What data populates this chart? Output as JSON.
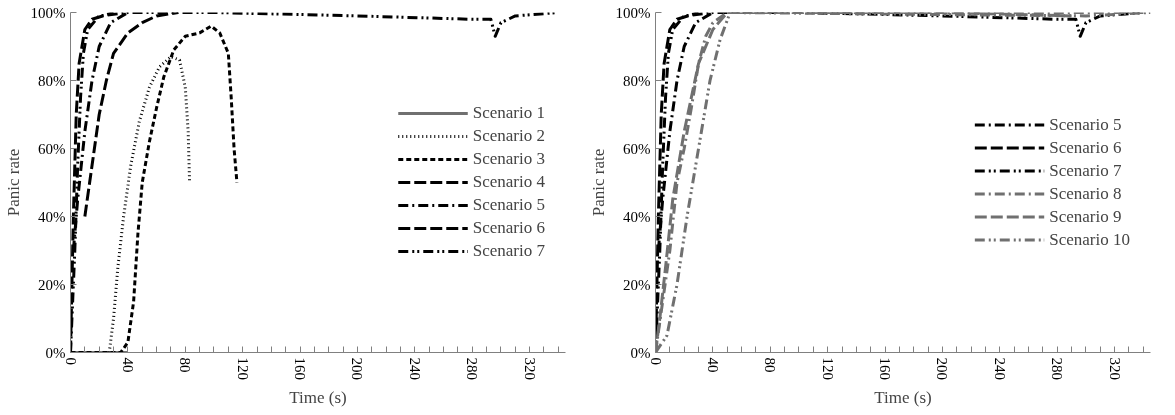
{
  "chart_data": [
    {
      "type": "line",
      "xlabel": "Time (s)",
      "ylabel": "Panic rate",
      "xlim": [
        0,
        345
      ],
      "ylim": [
        0,
        100
      ],
      "xticks": [
        0,
        {
          "value": 10,
          "label": null
        },
        {
          "value": 20,
          "label": null
        },
        {
          "value": 30,
          "label": null
        },
        40,
        {
          "value": 50,
          "label": null
        },
        {
          "value": 60,
          "label": null
        },
        {
          "value": 70,
          "label": null
        },
        80,
        {
          "value": 90,
          "label": null
        },
        {
          "value": 100,
          "label": null
        },
        {
          "value": 110,
          "label": null
        },
        120,
        {
          "value": 130,
          "label": null
        },
        {
          "value": 140,
          "label": null
        },
        {
          "value": 150,
          "label": null
        },
        160,
        {
          "value": 170,
          "label": null
        },
        {
          "value": 180,
          "label": null
        },
        {
          "value": 190,
          "label": null
        },
        200,
        {
          "value": 210,
          "label": null
        },
        {
          "value": 220,
          "label": null
        },
        {
          "value": 230,
          "label": null
        },
        240,
        {
          "value": 250,
          "label": null
        },
        {
          "value": 260,
          "label": null
        },
        {
          "value": 270,
          "label": null
        },
        280,
        {
          "value": 290,
          "label": null
        },
        {
          "value": 300,
          "label": null
        },
        {
          "value": 310,
          "label": null
        },
        320,
        {
          "value": 330,
          "label": null
        },
        {
          "value": 340,
          "label": null
        }
      ],
      "yticks": [
        {
          "value": 0,
          "label": "0%"
        },
        {
          "value": 20,
          "label": "20%"
        },
        {
          "value": 40,
          "label": "40%"
        },
        {
          "value": 60,
          "label": "60%"
        },
        {
          "value": 80,
          "label": "80%"
        },
        {
          "value": 100,
          "label": "100%"
        }
      ],
      "grid": false,
      "legend": "right",
      "marker": "none",
      "series": [
        {
          "name": "Scenario 1",
          "color": "#707070",
          "line_style": "solid",
          "x": [
            0,
            20,
            40
          ],
          "values": [
            0,
            0,
            0
          ]
        },
        {
          "name": "Scenario 2",
          "color": "#000000",
          "line_style": "dotted",
          "x": [
            27,
            30,
            33,
            37,
            42,
            48,
            55,
            62,
            70,
            76,
            80,
            82,
            83
          ],
          "values": [
            0,
            10,
            25,
            40,
            55,
            68,
            78,
            84,
            87,
            86,
            78,
            65,
            50
          ]
        },
        {
          "name": "Scenario 3",
          "color": "#000000",
          "line_style": "dashed",
          "x": [
            0,
            35,
            40,
            44,
            47,
            50,
            55,
            60,
            65,
            72,
            80,
            90,
            98,
            104,
            110,
            112,
            114,
            116
          ],
          "values": [
            0,
            0,
            3,
            15,
            35,
            50,
            62,
            72,
            81,
            89,
            93,
            94,
            96,
            94,
            88,
            75,
            60,
            50
          ]
        },
        {
          "name": "Scenario 4",
          "color": "#000000",
          "line_style": "longdash",
          "x": [
            10,
            15,
            20,
            25,
            30,
            40,
            50,
            60,
            75
          ],
          "values": [
            40,
            55,
            70,
            80,
            88,
            94,
            97,
            99,
            100
          ]
        },
        {
          "name": "Scenario 5",
          "color": "#000000",
          "line_style": "dashdot",
          "x": [
            2,
            5,
            10,
            15,
            20,
            28,
            40
          ],
          "values": [
            30,
            45,
            65,
            80,
            90,
            97,
            100
          ]
        },
        {
          "name": "Scenario 6",
          "color": "#000000",
          "line_style": "longdash",
          "x": [
            0,
            2,
            4,
            6,
            10,
            15,
            30
          ],
          "values": [
            0,
            40,
            70,
            85,
            95,
            98,
            100
          ]
        },
        {
          "name": "Scenario 7",
          "color": "#000000",
          "line_style": "dashdotdot",
          "x": [
            0,
            3,
            5,
            7,
            9,
            12,
            20,
            40,
            100,
            200,
            280,
            293,
            296,
            300,
            310,
            340
          ],
          "values": [
            0,
            30,
            55,
            75,
            88,
            95,
            99,
            100,
            100,
            99,
            98,
            98,
            93,
            97,
            99,
            100
          ]
        }
      ]
    },
    {
      "type": "line",
      "xlabel": "Time (s)",
      "ylabel": "Panic rate",
      "xlim": [
        0,
        345
      ],
      "ylim": [
        0,
        100
      ],
      "xticks": [
        0,
        {
          "value": 10,
          "label": null
        },
        {
          "value": 20,
          "label": null
        },
        {
          "value": 30,
          "label": null
        },
        40,
        {
          "value": 50,
          "label": null
        },
        {
          "value": 60,
          "label": null
        },
        {
          "value": 70,
          "label": null
        },
        80,
        {
          "value": 90,
          "label": null
        },
        {
          "value": 100,
          "label": null
        },
        {
          "value": 110,
          "label": null
        },
        120,
        {
          "value": 130,
          "label": null
        },
        {
          "value": 140,
          "label": null
        },
        {
          "value": 150,
          "label": null
        },
        160,
        {
          "value": 170,
          "label": null
        },
        {
          "value": 180,
          "label": null
        },
        {
          "value": 190,
          "label": null
        },
        200,
        {
          "value": 210,
          "label": null
        },
        {
          "value": 220,
          "label": null
        },
        {
          "value": 230,
          "label": null
        },
        240,
        {
          "value": 250,
          "label": null
        },
        {
          "value": 260,
          "label": null
        },
        {
          "value": 270,
          "label": null
        },
        280,
        {
          "value": 290,
          "label": null
        },
        {
          "value": 300,
          "label": null
        },
        {
          "value": 310,
          "label": null
        },
        320,
        {
          "value": 330,
          "label": null
        },
        {
          "value": 340,
          "label": null
        }
      ],
      "yticks": [
        {
          "value": 0,
          "label": "0%"
        },
        {
          "value": 20,
          "label": "20%"
        },
        {
          "value": 40,
          "label": "40%"
        },
        {
          "value": 60,
          "label": "60%"
        },
        {
          "value": 80,
          "label": "80%"
        },
        {
          "value": 100,
          "label": "100%"
        }
      ],
      "grid": false,
      "legend": "right",
      "marker": "none",
      "series": [
        {
          "name": "Scenario 5",
          "color": "#000000",
          "line_style": "dashdot",
          "x": [
            2,
            5,
            10,
            15,
            20,
            28,
            40
          ],
          "values": [
            30,
            45,
            65,
            80,
            90,
            97,
            100
          ]
        },
        {
          "name": "Scenario 6",
          "color": "#000000",
          "line_style": "longdash",
          "x": [
            0,
            2,
            4,
            6,
            10,
            15,
            30
          ],
          "values": [
            0,
            40,
            70,
            85,
            95,
            98,
            100
          ]
        },
        {
          "name": "Scenario 7",
          "color": "#000000",
          "line_style": "dashdotdot",
          "x": [
            0,
            3,
            5,
            7,
            9,
            12,
            20,
            40,
            100,
            200,
            280,
            293,
            296,
            300,
            310,
            340
          ],
          "values": [
            0,
            30,
            55,
            75,
            88,
            95,
            99,
            100,
            100,
            99,
            98,
            98,
            93,
            97,
            99,
            100
          ]
        },
        {
          "name": "Scenario 8",
          "color": "#707070",
          "line_style": "dashdot",
          "x": [
            0,
            5,
            10,
            15,
            20,
            25,
            30,
            35,
            40,
            50,
            340
          ],
          "values": [
            0,
            15,
            30,
            50,
            60,
            72,
            85,
            93,
            97,
            100,
            100
          ]
        },
        {
          "name": "Scenario 9",
          "color": "#707070",
          "line_style": "longdash",
          "x": [
            0,
            3,
            7,
            12,
            20,
            30,
            40,
            50,
            200,
            290
          ],
          "values": [
            0,
            10,
            25,
            45,
            65,
            85,
            95,
            100,
            100,
            99
          ]
        },
        {
          "name": "Scenario 10",
          "color": "#707070",
          "line_style": "dashdotdot",
          "x": [
            0,
            8,
            15,
            22,
            30,
            38,
            45,
            52,
            300,
            345
          ],
          "values": [
            0,
            5,
            20,
            40,
            60,
            80,
            92,
            100,
            99,
            100
          ]
        }
      ]
    }
  ]
}
